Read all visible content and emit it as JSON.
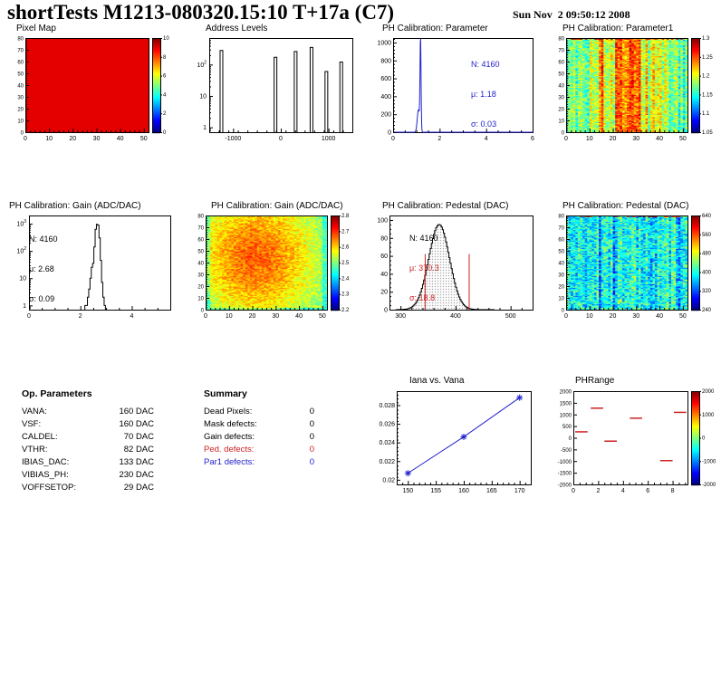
{
  "header": {
    "title": "shortTests M1213-080320.15:10 T+17a (C7)",
    "date": "Sun Nov  2 09:50:12 2008"
  },
  "colors": {
    "blue": "#2222cc",
    "red": "#cc2222",
    "black": "#000000"
  },
  "op_parameters": {
    "title": "Op. Parameters",
    "rows": [
      {
        "label": "VANA:",
        "value": "160 DAC"
      },
      {
        "label": "VSF:",
        "value": "160 DAC"
      },
      {
        "label": "CALDEL:",
        "value": "70 DAC"
      },
      {
        "label": "VTHR:",
        "value": "82 DAC"
      },
      {
        "label": "IBIAS_DAC:",
        "value": "133 DAC"
      },
      {
        "label": "VIBIAS_PH:",
        "value": "230 DAC"
      },
      {
        "label": "VOFFSETOP:",
        "value": "29 DAC"
      }
    ]
  },
  "summary": {
    "title": "Summary",
    "rows": [
      {
        "label": "Dead Pixels:",
        "value": "0",
        "color": "#000000"
      },
      {
        "label": "Mask defects:",
        "value": "0",
        "color": "#000000"
      },
      {
        "label": "Gain defects:",
        "value": "0",
        "color": "#000000"
      },
      {
        "label": "Ped. defects:",
        "value": "0",
        "color": "#cc2222"
      },
      {
        "label": "Par1 defects:",
        "value": "0",
        "color": "#2222cc"
      }
    ]
  },
  "chart_data": [
    {
      "id": "pixel_map",
      "type": "heatmap",
      "title": "Pixel Map",
      "xlim": [
        0,
        52
      ],
      "ylim": [
        0,
        80
      ],
      "xticks": [
        0,
        10,
        20,
        30,
        40,
        50
      ],
      "yticks": [
        0,
        10,
        20,
        30,
        40,
        50,
        60,
        70,
        80
      ],
      "zlim": [
        0,
        10
      ],
      "colorbar_ticks": [
        0,
        2,
        4,
        6,
        8,
        10
      ],
      "pattern": "uniform",
      "uniform_value": 9,
      "note": "all pixels uniform (solid red)"
    },
    {
      "id": "address_levels",
      "type": "hist-spikes",
      "title": "Address Levels",
      "xlim": [
        -1500,
        1500
      ],
      "xticks": [
        -1000,
        0,
        1000
      ],
      "log_y": true,
      "ylim": [
        0.7,
        700
      ],
      "ytick_labels": [
        "1",
        "10",
        "10^2"
      ],
      "spikes": [
        [
          -1244,
          280
        ],
        [
          -111,
          170
        ],
        [
          311,
          260
        ],
        [
          644,
          350
        ],
        [
          956,
          60
        ],
        [
          1267,
          120
        ]
      ],
      "color": "#000000"
    },
    {
      "id": "ph_param_hist",
      "type": "hist-curve",
      "title": "PH Calibration: Parameter",
      "xlim": [
        0,
        6
      ],
      "xticks": [
        0,
        2,
        4,
        6
      ],
      "ylim": [
        0,
        1050
      ],
      "yticks": [
        0,
        200,
        400,
        600,
        800,
        1000
      ],
      "components": [
        {
          "mu": 1.18,
          "sigma": 0.022,
          "amp": 1030
        },
        {
          "mu": 1.09,
          "sigma": 0.05,
          "amp": 250
        }
      ],
      "stats": {
        "n": "N: 4160",
        "mu": "μ: 1.18",
        "sigma": "σ: 0.03"
      },
      "stats_color": "#2222cc",
      "color": "#2222cc"
    },
    {
      "id": "ph_param1_map",
      "type": "heatmap",
      "title": "PH Calibration: Parameter1",
      "xlim": [
        0,
        52
      ],
      "ylim": [
        0,
        80
      ],
      "xticks": [
        0,
        10,
        20,
        30,
        40,
        50
      ],
      "yticks": [
        0,
        10,
        20,
        30,
        40,
        50,
        60,
        70,
        80
      ],
      "zlim": [
        1.05,
        1.3
      ],
      "colorbar_ticks": [
        1.05,
        1.1,
        1.15,
        1.2,
        1.25,
        1.3
      ],
      "pattern": "param1",
      "base": 1.165,
      "note": "green field with warmer vertical streaks near columns 18-30"
    },
    {
      "id": "gain_hist",
      "type": "hist-step",
      "title": "PH Calibration: Gain (ADC/DAC)",
      "xlim": [
        0,
        5.5
      ],
      "xticks": [
        0,
        2,
        4
      ],
      "log_y": true,
      "ylim": [
        0.7,
        2000
      ],
      "ytick_labels": [
        "1",
        "10",
        "10^2",
        "10^3"
      ],
      "bin_width": 0.05,
      "bins": [
        [
          2.2,
          1
        ],
        [
          2.25,
          1
        ],
        [
          2.3,
          2
        ],
        [
          2.35,
          4
        ],
        [
          2.4,
          10
        ],
        [
          2.45,
          25
        ],
        [
          2.5,
          35
        ],
        [
          2.55,
          140
        ],
        [
          2.6,
          620
        ],
        [
          2.65,
          950
        ],
        [
          2.7,
          880
        ],
        [
          2.75,
          300
        ],
        [
          2.8,
          45
        ],
        [
          2.85,
          7
        ],
        [
          2.9,
          2
        ],
        [
          2.95,
          1
        ]
      ],
      "stats": {
        "n": "N: 4160",
        "mu": "μ: 2.68",
        "sigma": "σ: 0.09"
      },
      "stats_color": "#000000",
      "color": "#000000"
    },
    {
      "id": "gain_map",
      "type": "heatmap",
      "title": "PH Calibration: Gain (ADC/DAC)",
      "xlim": [
        0,
        52
      ],
      "ylim": [
        0,
        80
      ],
      "xticks": [
        0,
        10,
        20,
        30,
        40,
        50
      ],
      "yticks": [
        0,
        10,
        20,
        30,
        40,
        50,
        60,
        70,
        80
      ],
      "zlim": [
        2.2,
        2.8
      ],
      "colorbar_ticks": [
        2.2,
        2.3,
        2.4,
        2.5,
        2.6,
        2.7,
        2.8
      ],
      "pattern": "gain",
      "base": 2.47,
      "note": "orange-red center blob, greener edges"
    },
    {
      "id": "pedestal_hist",
      "type": "hist-gauss",
      "title": "PH Calibration: Pedestal (DAC)",
      "xlim": [
        280,
        540
      ],
      "xticks": [
        300,
        400,
        500
      ],
      "ylim": [
        0,
        105
      ],
      "yticks": [
        0,
        20,
        40,
        60,
        80,
        100
      ],
      "gauss": {
        "mu": 370.3,
        "sigma": 18.8,
        "amp": 95
      },
      "bin_width": 2,
      "range": [
        292,
        470
      ],
      "limit_lines": [
        344,
        424
      ],
      "limit_height": 62,
      "stats": {
        "n": "N: 4160",
        "mu": "μ: 370.3",
        "sigma": "σ: 18.8"
      },
      "stats_n_color": "#000000",
      "stats_musigma_color": "#cc2222",
      "color": "#000000"
    },
    {
      "id": "pedestal_map",
      "type": "heatmap",
      "title": "PH Calibration: Pedestal (DAC)",
      "xlim": [
        0,
        52
      ],
      "ylim": [
        0,
        80
      ],
      "xticks": [
        0,
        10,
        20,
        30,
        40,
        50
      ],
      "yticks": [
        0,
        10,
        20,
        30,
        40,
        50,
        60,
        70,
        80
      ],
      "zlim": [
        240,
        640
      ],
      "colorbar_ticks": [
        240,
        320,
        400,
        480,
        560,
        640
      ],
      "pattern": "pedestal",
      "base": 395,
      "note": "cyan/green field with blue column streaks, hot cells along top row"
    },
    {
      "id": "iana_vs_vana",
      "type": "line",
      "title": "Iana vs. Vana",
      "xlim": [
        148,
        172
      ],
      "xticks": [
        150,
        155,
        160,
        165,
        170
      ],
      "ylim": [
        0.0195,
        0.0295
      ],
      "yticks": [
        0.02,
        0.022,
        0.024,
        0.026,
        0.028
      ],
      "points": [
        [
          150,
          0.0207
        ],
        [
          160,
          0.0246
        ],
        [
          170,
          0.0288
        ]
      ],
      "marker": "star",
      "color": "#2222cc"
    },
    {
      "id": "phrange",
      "type": "dashes",
      "title": "PHRange",
      "xlim": [
        0,
        9.2
      ],
      "xticks": [
        0,
        2,
        4,
        6,
        8
      ],
      "ylim": [
        -2000,
        2000
      ],
      "yticks": [
        2000,
        1500,
        1000,
        500,
        0,
        -500,
        -1000,
        -1500,
        -2000
      ],
      "zlim": [
        -2000,
        2000
      ],
      "colorbar_ticks": [
        2000,
        1000,
        0,
        -1000,
        -2000
      ],
      "dashes": [
        [
          1.9,
          1270
        ],
        [
          5.05,
          840
        ],
        [
          8.6,
          1090
        ],
        [
          0.65,
          255
        ],
        [
          3.0,
          -145
        ],
        [
          7.5,
          -980
        ]
      ],
      "dash_halfwidth": 0.5,
      "color": "#cc2222"
    }
  ]
}
